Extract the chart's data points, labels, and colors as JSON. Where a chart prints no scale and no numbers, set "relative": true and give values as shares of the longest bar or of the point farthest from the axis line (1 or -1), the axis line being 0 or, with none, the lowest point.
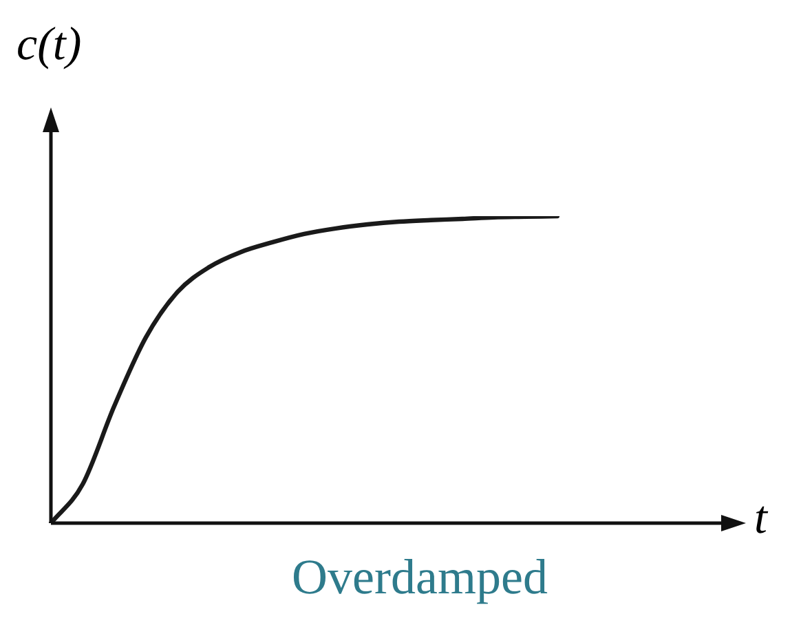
{
  "chart_data": {
    "type": "line",
    "relative": true,
    "xlabel": "t",
    "ylabel": "c(t)",
    "annotations": [
      "Overdamped"
    ],
    "categories": [
      null,
      null,
      null,
      null,
      null,
      null,
      null,
      null,
      null,
      null,
      null,
      null,
      null,
      null,
      null,
      null,
      null
    ],
    "series": [
      {
        "color": "#1a1a1a",
        "values": [
          0,
          0.126,
          0.381,
          0.605,
          0.753,
          0.834,
          0.883,
          0.915,
          0.942,
          0.96,
          0.973,
          0.982,
          0.987,
          0.991,
          0.996,
          0.998,
          1
        ]
      }
    ],
    "legend": false,
    "marker": "none",
    "line_style": "solid"
  }
}
